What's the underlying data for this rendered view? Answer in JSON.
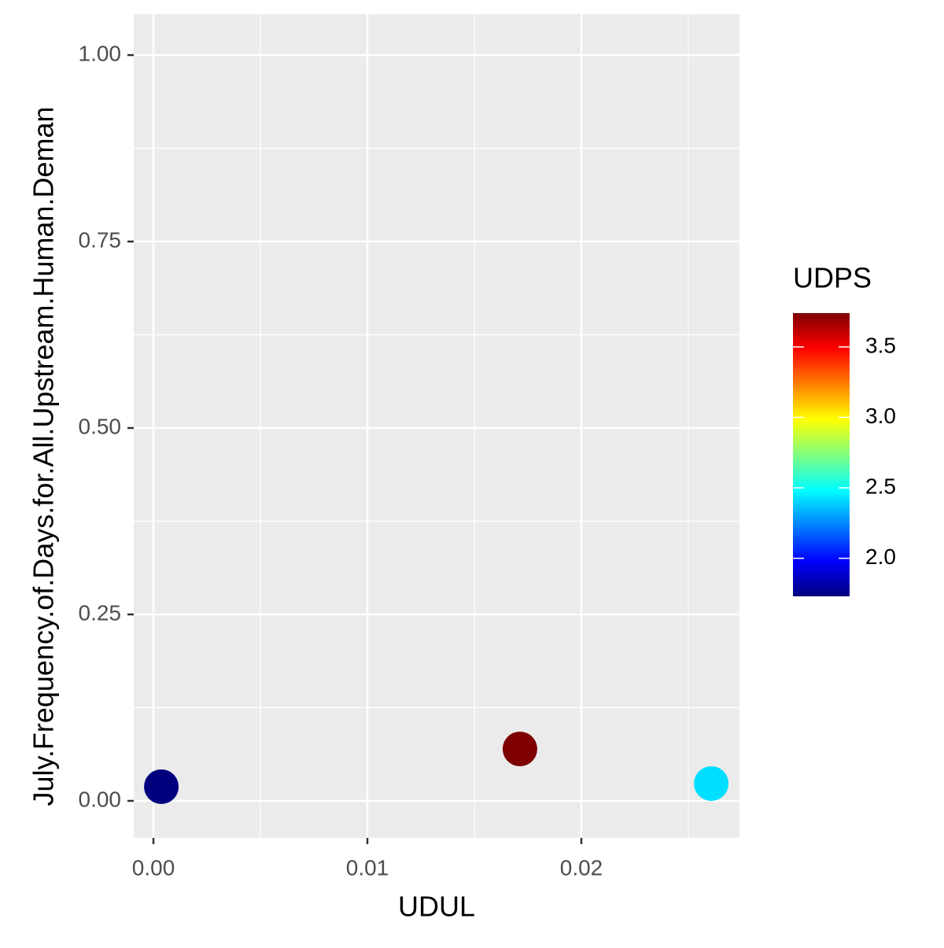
{
  "chart_data": {
    "type": "scatter",
    "x_label": "UDUL",
    "y_label": "July.Frequency.of.Days.for.All.Upstream.Human.Deman",
    "legend_title": "UDPS",
    "x": [
      0.00037,
      0.01713,
      0.02607
    ],
    "y": [
      0.019,
      0.0696,
      0.0232
    ],
    "color_values": [
      1.73,
      3.74,
      2.42
    ],
    "colorscale": [
      "#00007F",
      "#0000FF",
      "#007FFF",
      "#00FFFF",
      "#7FFF7F",
      "#FFFF00",
      "#FF7F00",
      "#FF0000",
      "#7F0000"
    ],
    "colorlim": [
      1.73,
      3.74
    ],
    "colorticks": [
      {
        "value": 2,
        "label": "2.0"
      },
      2.5,
      {
        "value": 3,
        "label": "3.0"
      },
      3.5
    ],
    "xlim": [
      -0.00092,
      0.02739
    ],
    "ylim": [
      -0.0496,
      1.0549
    ],
    "xticks": [
      {
        "value": 0,
        "label": "0.00"
      },
      0.01,
      0.02
    ],
    "yticks": [
      {
        "value": 0,
        "label": "0.00"
      },
      0.25,
      {
        "value": 0.5,
        "label": "0.50"
      },
      0.75,
      {
        "value": 1,
        "label": "1.00"
      }
    ],
    "xminor": [
      0.005,
      0.015,
      0.025
    ],
    "yminor": [
      0.125,
      0.375,
      0.625,
      0.875
    ],
    "grid": true
  }
}
